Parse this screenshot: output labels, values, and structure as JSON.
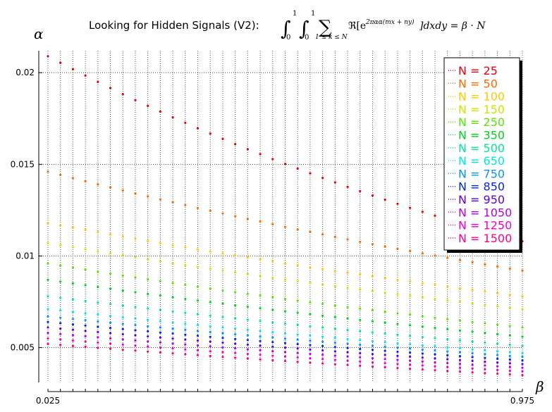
{
  "chart_data": {
    "type": "scatter",
    "title": "Looking for Hidden Signals (V2):",
    "title_formula": "∫₀¹∫₀¹ Σ₁≤k≤N ℜ[e^{2πα(mx+ny)}] dxdy = β·N",
    "xlabel": "β",
    "ylabel": "α",
    "x_tick_labels": [
      "0.025",
      "0.975"
    ],
    "y_tick_labels": [
      "0.005",
      "0.01",
      "0.015",
      "0.02"
    ],
    "y_ticks": [
      0.005,
      0.01,
      0.015,
      0.02
    ],
    "xlim": [
      0.025,
      0.975
    ],
    "ylim": [
      0.0031,
      0.0212
    ],
    "grid": "dotted",
    "legend_position": "top-right",
    "x": [
      0.025,
      0.05,
      0.075,
      0.1,
      0.125,
      0.15,
      0.175,
      0.2,
      0.225,
      0.25,
      0.275,
      0.3,
      0.325,
      0.35,
      0.375,
      0.4,
      0.425,
      0.45,
      0.475,
      0.5,
      0.525,
      0.55,
      0.575,
      0.6,
      0.625,
      0.65,
      0.675,
      0.7,
      0.725,
      0.75,
      0.775,
      0.8,
      0.825,
      0.85,
      0.875,
      0.9,
      0.925,
      0.95,
      0.975
    ],
    "series": [
      {
        "name": "N = 25",
        "color": "#e8000b",
        "start": 0.0209,
        "end": 0.0108
      },
      {
        "name": "N = 50",
        "color": "#ff6a00",
        "start": 0.0146,
        "end": 0.0092
      },
      {
        "name": "N = 100",
        "color": "#ffc800",
        "start": 0.0118,
        "end": 0.0078
      },
      {
        "name": "N = 150",
        "color": "#c8e600",
        "start": 0.0107,
        "end": 0.0071
      },
      {
        "name": "N = 250",
        "color": "#55e600",
        "start": 0.0096,
        "end": 0.0061
      },
      {
        "name": "N = 350",
        "color": "#00d21e",
        "start": 0.0087,
        "end": 0.0056
      },
      {
        "name": "N = 500",
        "color": "#00e699",
        "start": 0.0078,
        "end": 0.0051
      },
      {
        "name": "N = 650",
        "color": "#00e6e6",
        "start": 0.0071,
        "end": 0.0047
      },
      {
        "name": "N = 750",
        "color": "#0096ff",
        "start": 0.0067,
        "end": 0.0045
      },
      {
        "name": "N = 850",
        "color": "#0028e6",
        "start": 0.0064,
        "end": 0.0043
      },
      {
        "name": "N = 950",
        "color": "#5a00e6",
        "start": 0.0061,
        "end": 0.0041
      },
      {
        "name": "N = 1050",
        "color": "#b400f0",
        "start": 0.0058,
        "end": 0.0039
      },
      {
        "name": "N = 1250",
        "color": "#f000c8",
        "start": 0.0055,
        "end": 0.0037
      },
      {
        "name": "N = 1500",
        "color": "#ff007f",
        "start": 0.0052,
        "end": 0.0035
      }
    ]
  }
}
